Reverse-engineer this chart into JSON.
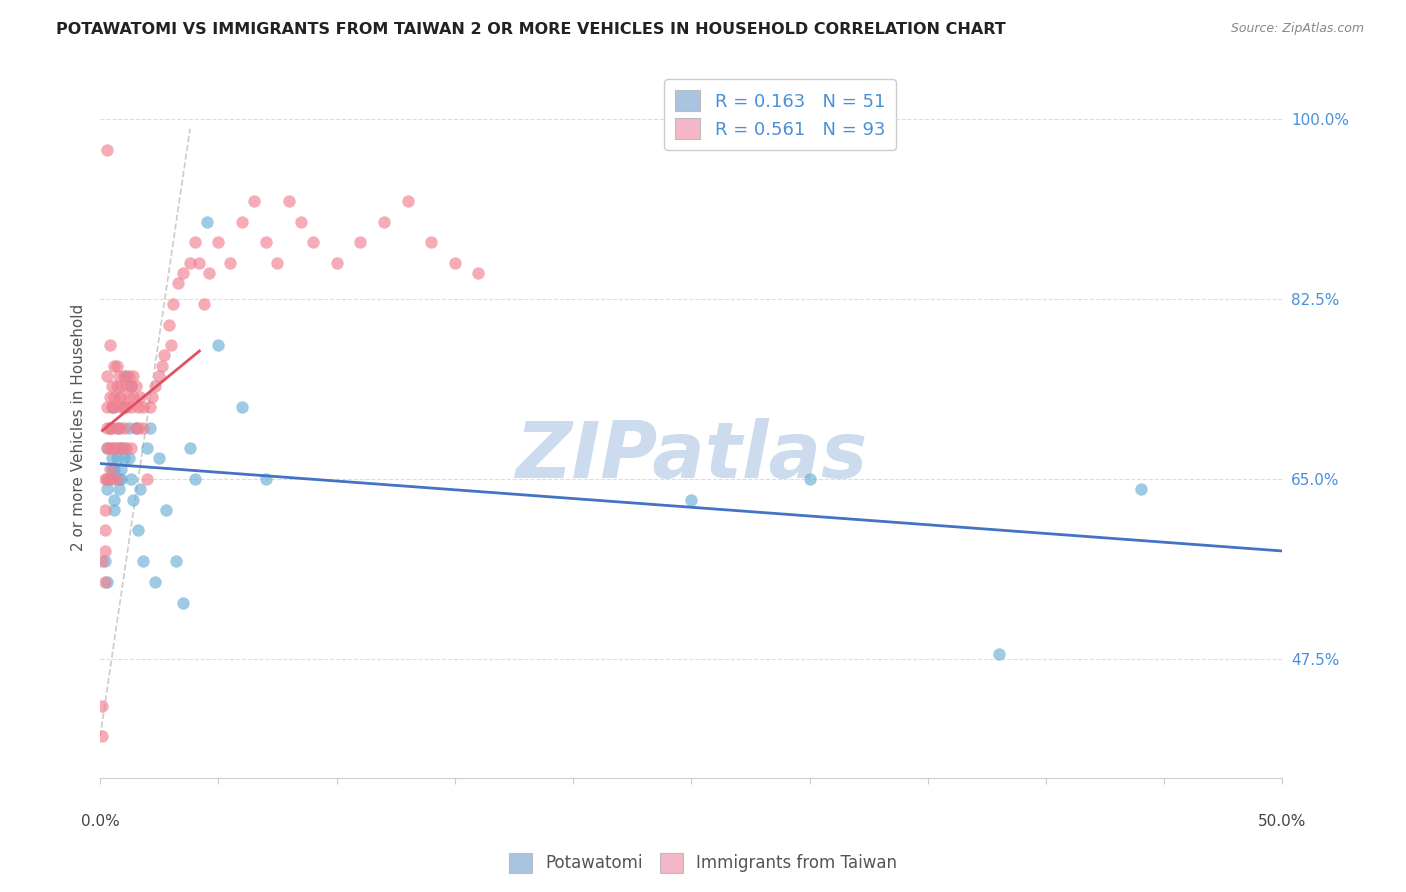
{
  "title": "POTAWATOMI VS IMMIGRANTS FROM TAIWAN 2 OR MORE VEHICLES IN HOUSEHOLD CORRELATION CHART",
  "source": "Source: ZipAtlas.com",
  "ylabel": "2 or more Vehicles in Household",
  "yticks": [
    47.5,
    65.0,
    82.5,
    100.0
  ],
  "ytick_labels": [
    "47.5%",
    "65.0%",
    "82.5%",
    "100.0%"
  ],
  "xticks": [
    0.0,
    0.05,
    0.1,
    0.15,
    0.2,
    0.25,
    0.3,
    0.35,
    0.4,
    0.45,
    0.5
  ],
  "xmin": 0.0,
  "xmax": 0.5,
  "ymin": 36.0,
  "ymax": 104.0,
  "blue_R": 0.163,
  "blue_N": 51,
  "pink_R": 0.561,
  "pink_N": 93,
  "blue_legend_color": "#a8c4e0",
  "pink_legend_color": "#f4b8c8",
  "blue_scatter_color": "#6baed6",
  "pink_scatter_color": "#f08090",
  "trend_blue_color": "#4472c4",
  "trend_pink_color": "#e05060",
  "ref_line_color": "#cccccc",
  "watermark_color": "#ccdcee",
  "legend_text_color": "#4a90d9",
  "grid_color": "#dddddd",
  "blue_x": [
    0.002,
    0.003,
    0.003,
    0.003,
    0.003,
    0.004,
    0.004,
    0.005,
    0.005,
    0.005,
    0.006,
    0.006,
    0.006,
    0.007,
    0.007,
    0.008,
    0.008,
    0.008,
    0.009,
    0.009,
    0.009,
    0.01,
    0.01,
    0.01,
    0.011,
    0.012,
    0.012,
    0.013,
    0.013,
    0.014,
    0.015,
    0.016,
    0.017,
    0.018,
    0.02,
    0.021,
    0.023,
    0.025,
    0.028,
    0.032,
    0.035,
    0.038,
    0.04,
    0.045,
    0.05,
    0.06,
    0.07,
    0.25,
    0.3,
    0.38,
    0.44
  ],
  "blue_y": [
    57,
    55,
    65,
    68,
    64,
    70,
    65,
    66,
    72,
    67,
    63,
    62,
    66,
    68,
    67,
    65,
    70,
    64,
    68,
    65,
    66,
    72,
    67,
    68,
    75,
    67,
    70,
    74,
    65,
    63,
    70,
    60,
    64,
    57,
    68,
    70,
    55,
    67,
    62,
    57,
    53,
    68,
    65,
    90,
    78,
    72,
    65,
    63,
    65,
    48,
    64
  ],
  "pink_x": [
    0.001,
    0.001,
    0.001,
    0.002,
    0.002,
    0.002,
    0.002,
    0.002,
    0.003,
    0.003,
    0.003,
    0.003,
    0.003,
    0.003,
    0.004,
    0.004,
    0.004,
    0.004,
    0.004,
    0.005,
    0.005,
    0.005,
    0.005,
    0.005,
    0.006,
    0.006,
    0.006,
    0.006,
    0.007,
    0.007,
    0.007,
    0.007,
    0.008,
    0.008,
    0.008,
    0.008,
    0.009,
    0.009,
    0.009,
    0.009,
    0.01,
    0.01,
    0.01,
    0.011,
    0.011,
    0.011,
    0.012,
    0.012,
    0.013,
    0.013,
    0.013,
    0.014,
    0.014,
    0.015,
    0.015,
    0.016,
    0.016,
    0.017,
    0.018,
    0.018,
    0.02,
    0.021,
    0.022,
    0.023,
    0.025,
    0.026,
    0.027,
    0.029,
    0.03,
    0.031,
    0.033,
    0.035,
    0.038,
    0.04,
    0.042,
    0.044,
    0.046,
    0.05,
    0.055,
    0.06,
    0.065,
    0.07,
    0.075,
    0.08,
    0.085,
    0.09,
    0.1,
    0.11,
    0.12,
    0.13,
    0.14,
    0.15,
    0.16
  ],
  "pink_y": [
    40,
    43,
    57,
    62,
    65,
    55,
    60,
    58,
    97,
    65,
    75,
    68,
    70,
    72,
    73,
    78,
    70,
    66,
    68,
    72,
    74,
    65,
    68,
    70,
    73,
    76,
    68,
    72,
    74,
    70,
    76,
    65,
    75,
    73,
    70,
    68,
    72,
    74,
    68,
    73,
    75,
    72,
    70,
    74,
    72,
    68,
    75,
    73,
    74,
    72,
    68,
    75,
    73,
    70,
    74,
    72,
    70,
    73,
    72,
    70,
    65,
    72,
    73,
    74,
    75,
    76,
    77,
    80,
    78,
    82,
    84,
    85,
    86,
    88,
    86,
    82,
    85,
    88,
    86,
    90,
    92,
    88,
    86,
    92,
    90,
    88,
    86,
    88,
    90,
    92,
    88,
    86,
    85
  ]
}
